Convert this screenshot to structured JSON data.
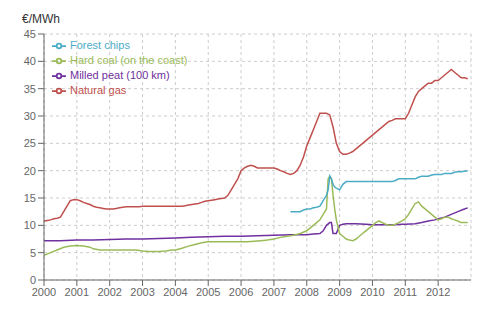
{
  "chart_data": {
    "type": "line",
    "ylabel": "€/MWh",
    "xlim": [
      2000,
      2013
    ],
    "xticks": [
      2000,
      2001,
      2002,
      2003,
      2004,
      2005,
      2006,
      2007,
      2008,
      2009,
      2010,
      2011,
      2012
    ],
    "ylim": [
      0,
      45
    ],
    "yticks": [
      0,
      5,
      10,
      15,
      20,
      25,
      30,
      35,
      40,
      45
    ],
    "grid": true,
    "legend": "upper left",
    "series": [
      {
        "name": "Natural gas",
        "color": "#c0504d",
        "x": [
          2000.0,
          2000.1,
          2000.2,
          2000.3,
          2000.4,
          2000.5,
          2000.6,
          2000.7,
          2000.8,
          2000.9,
          2001.0,
          2001.1,
          2001.2,
          2001.3,
          2001.4,
          2001.5,
          2001.6,
          2001.7,
          2001.8,
          2001.9,
          2002.0,
          2002.1,
          2002.2,
          2002.3,
          2002.4,
          2002.5,
          2002.6,
          2002.7,
          2002.8,
          2002.9,
          2003.0,
          2003.1,
          2003.2,
          2003.3,
          2003.4,
          2003.5,
          2003.6,
          2003.7,
          2003.8,
          2003.9,
          2004.0,
          2004.1,
          2004.2,
          2004.3,
          2004.4,
          2004.5,
          2004.6,
          2004.7,
          2004.8,
          2004.9,
          2005.0,
          2005.1,
          2005.2,
          2005.3,
          2005.4,
          2005.5,
          2005.6,
          2005.7,
          2005.8,
          2005.9,
          2006.0,
          2006.1,
          2006.2,
          2006.3,
          2006.4,
          2006.5,
          2006.6,
          2006.7,
          2006.8,
          2006.9,
          2007.0,
          2007.1,
          2007.2,
          2007.3,
          2007.4,
          2007.5,
          2007.6,
          2007.7,
          2007.8,
          2007.9,
          2008.0,
          2008.1,
          2008.2,
          2008.3,
          2008.4,
          2008.5,
          2008.6,
          2008.7,
          2008.8,
          2008.9,
          2009.0,
          2009.1,
          2009.2,
          2009.3,
          2009.4,
          2009.5,
          2009.6,
          2009.7,
          2009.8,
          2009.9,
          2010.0,
          2010.1,
          2010.2,
          2010.3,
          2010.4,
          2010.5,
          2010.6,
          2010.7,
          2010.8,
          2010.9,
          2011.0,
          2011.1,
          2011.2,
          2011.3,
          2011.4,
          2011.5,
          2011.6,
          2011.7,
          2011.8,
          2011.9,
          2012.0,
          2012.1,
          2012.2,
          2012.3,
          2012.4,
          2012.5,
          2012.6,
          2012.7,
          2012.8,
          2012.9
        ],
        "values": [
          10.8,
          10.9,
          11.0,
          11.2,
          11.3,
          11.5,
          12.5,
          13.5,
          14.5,
          14.7,
          14.7,
          14.5,
          14.2,
          14.0,
          13.8,
          13.5,
          13.3,
          13.2,
          13.1,
          13.0,
          13.0,
          13.0,
          13.1,
          13.2,
          13.3,
          13.4,
          13.4,
          13.4,
          13.4,
          13.4,
          13.5,
          13.5,
          13.5,
          13.5,
          13.5,
          13.5,
          13.5,
          13.5,
          13.5,
          13.5,
          13.5,
          13.5,
          13.5,
          13.6,
          13.7,
          13.8,
          13.9,
          14.0,
          14.2,
          14.4,
          14.5,
          14.6,
          14.7,
          14.8,
          14.9,
          15.0,
          15.5,
          16.5,
          17.5,
          18.5,
          20.0,
          20.5,
          20.8,
          21.0,
          20.8,
          20.5,
          20.5,
          20.5,
          20.5,
          20.5,
          20.5,
          20.3,
          20.0,
          19.8,
          19.5,
          19.3,
          19.5,
          20.0,
          21.0,
          22.5,
          24.5,
          26.0,
          27.5,
          29.0,
          30.5,
          30.5,
          30.5,
          30.2,
          28.0,
          25.0,
          23.5,
          23.0,
          23.0,
          23.2,
          23.5,
          24.0,
          24.5,
          25.0,
          25.5,
          26.0,
          26.5,
          27.0,
          27.5,
          28.0,
          28.5,
          29.0,
          29.2,
          29.5,
          29.5,
          29.5,
          29.5,
          30.5,
          32.0,
          33.5,
          34.5,
          35.0,
          35.5,
          36.0,
          36.0,
          36.5,
          36.5,
          37.0,
          37.5,
          38.0,
          38.5,
          38.0,
          37.5,
          37.0,
          37.0,
          36.8
        ]
      },
      {
        "name": "Milled peat (100 km)",
        "color": "#7030a0",
        "x": [
          2000.0,
          2000.5,
          2001.0,
          2001.5,
          2002.0,
          2002.5,
          2003.0,
          2003.5,
          2004.0,
          2004.5,
          2005.0,
          2005.5,
          2006.0,
          2006.5,
          2007.0,
          2007.5,
          2008.0,
          2008.2,
          2008.4,
          2008.5,
          2008.6,
          2008.7,
          2008.75,
          2008.8,
          2008.9,
          2009.0,
          2009.1,
          2009.2,
          2009.5,
          2009.8,
          2010.0,
          2010.2,
          2010.5,
          2010.7,
          2010.9,
          2011.0,
          2011.3,
          2011.5,
          2011.7,
          2011.9,
          2012.0,
          2012.2,
          2012.4,
          2012.6,
          2012.8,
          2012.9
        ],
        "values": [
          7.2,
          7.2,
          7.3,
          7.3,
          7.4,
          7.5,
          7.5,
          7.6,
          7.7,
          7.8,
          7.9,
          8.0,
          8.0,
          8.1,
          8.2,
          8.3,
          8.3,
          8.4,
          8.5,
          9.0,
          10.0,
          10.5,
          10.5,
          8.5,
          8.5,
          10.0,
          10.2,
          10.3,
          10.3,
          10.2,
          10.1,
          10.1,
          10.1,
          10.1,
          10.2,
          10.2,
          10.3,
          10.5,
          10.8,
          11.0,
          11.2,
          11.5,
          12.0,
          12.5,
          13.0,
          13.2
        ]
      },
      {
        "name": "Hard coal (on the coast)",
        "color": "#9bbb59",
        "x": [
          2000.0,
          2000.2,
          2000.4,
          2000.6,
          2000.8,
          2001.0,
          2001.2,
          2001.4,
          2001.5,
          2001.7,
          2001.9,
          2002.0,
          2002.2,
          2002.4,
          2002.6,
          2002.8,
          2003.0,
          2003.2,
          2003.4,
          2003.5,
          2003.7,
          2003.9,
          2004.0,
          2004.2,
          2004.4,
          2004.6,
          2004.8,
          2005.0,
          2005.2,
          2005.4,
          2005.6,
          2005.8,
          2006.0,
          2006.2,
          2006.4,
          2006.6,
          2006.8,
          2007.0,
          2007.2,
          2007.4,
          2007.6,
          2007.8,
          2008.0,
          2008.1,
          2008.2,
          2008.3,
          2008.4,
          2008.5,
          2008.6,
          2008.65,
          2008.7,
          2008.75,
          2008.8,
          2008.85,
          2008.9,
          2009.0,
          2009.1,
          2009.2,
          2009.3,
          2009.4,
          2009.5,
          2009.6,
          2009.7,
          2009.8,
          2009.9,
          2010.0,
          2010.1,
          2010.2,
          2010.3,
          2010.4,
          2010.5,
          2010.6,
          2010.7,
          2010.8,
          2010.9,
          2011.0,
          2011.1,
          2011.2,
          2011.3,
          2011.4,
          2011.5,
          2011.6,
          2011.7,
          2011.8,
          2011.9,
          2012.0,
          2012.1,
          2012.2,
          2012.3,
          2012.4,
          2012.5,
          2012.6,
          2012.7,
          2012.8,
          2012.9
        ],
        "values": [
          4.5,
          5.0,
          5.5,
          6.0,
          6.2,
          6.3,
          6.2,
          6.0,
          5.7,
          5.5,
          5.5,
          5.5,
          5.5,
          5.5,
          5.5,
          5.5,
          5.3,
          5.2,
          5.2,
          5.2,
          5.3,
          5.5,
          5.5,
          5.8,
          6.2,
          6.5,
          6.8,
          7.0,
          7.0,
          7.0,
          7.0,
          7.0,
          7.0,
          7.0,
          7.1,
          7.2,
          7.3,
          7.5,
          7.8,
          8.0,
          8.2,
          8.5,
          9.0,
          9.5,
          10.0,
          10.5,
          11.0,
          12.0,
          13.0,
          18.5,
          19.0,
          18.5,
          15.5,
          13.0,
          11.0,
          8.5,
          8.0,
          7.5,
          7.3,
          7.2,
          7.5,
          8.0,
          8.5,
          9.0,
          9.5,
          10.0,
          10.5,
          10.8,
          10.5,
          10.2,
          10.0,
          10.0,
          10.2,
          10.5,
          10.8,
          11.2,
          12.0,
          13.0,
          14.0,
          14.3,
          13.5,
          13.0,
          12.5,
          12.0,
          11.5,
          11.0,
          11.2,
          11.5,
          11.5,
          11.2,
          11.0,
          10.8,
          10.5,
          10.5,
          10.5
        ]
      },
      {
        "name": "Forest chips",
        "color": "#4bacc6",
        "x": [
          2007.5,
          2007.6,
          2007.7,
          2007.8,
          2007.9,
          2008.0,
          2008.1,
          2008.2,
          2008.3,
          2008.4,
          2008.5,
          2008.6,
          2008.65,
          2008.7,
          2008.75,
          2008.8,
          2008.85,
          2008.9,
          2009.0,
          2009.1,
          2009.2,
          2009.3,
          2009.4,
          2009.5,
          2009.6,
          2009.7,
          2009.8,
          2009.9,
          2010.0,
          2010.1,
          2010.2,
          2010.3,
          2010.4,
          2010.5,
          2010.6,
          2010.7,
          2010.8,
          2010.9,
          2011.0,
          2011.1,
          2011.2,
          2011.3,
          2011.4,
          2011.5,
          2011.6,
          2011.7,
          2011.8,
          2011.9,
          2012.0,
          2012.1,
          2012.2,
          2012.3,
          2012.4,
          2012.5,
          2012.6,
          2012.7,
          2012.8,
          2012.9
        ],
        "values": [
          12.5,
          12.5,
          12.5,
          12.5,
          12.8,
          13.0,
          13.0,
          13.2,
          13.3,
          13.5,
          14.5,
          15.5,
          16.5,
          19.0,
          18.5,
          17.5,
          17.0,
          16.8,
          16.5,
          17.5,
          18.0,
          18.0,
          18.0,
          18.0,
          18.0,
          18.0,
          18.0,
          18.0,
          18.0,
          18.0,
          18.0,
          18.0,
          18.0,
          18.0,
          18.0,
          18.2,
          18.5,
          18.5,
          18.5,
          18.5,
          18.5,
          18.5,
          18.8,
          19.0,
          19.0,
          19.0,
          19.2,
          19.3,
          19.3,
          19.3,
          19.5,
          19.5,
          19.5,
          19.7,
          19.8,
          19.8,
          19.9,
          20.0
        ]
      }
    ]
  }
}
